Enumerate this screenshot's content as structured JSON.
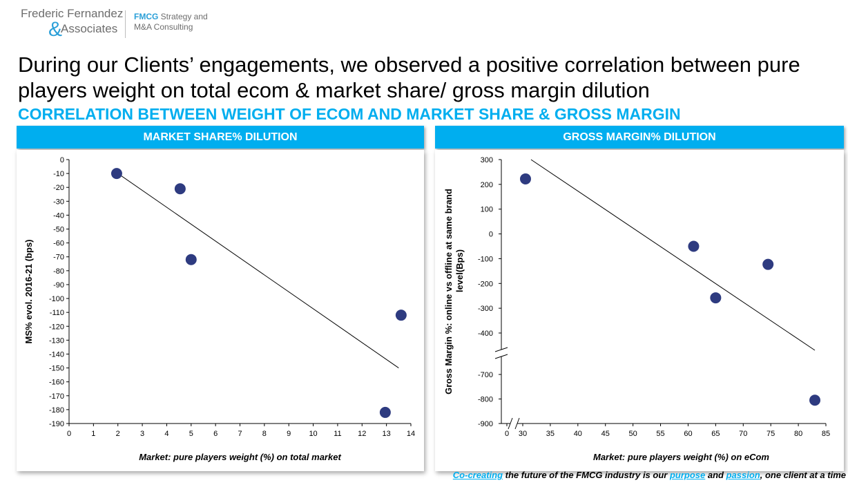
{
  "logo": {
    "name_line1": "Frederic Fernandez",
    "ampersand": "&",
    "name_line2": "Associates",
    "tagline_brand": "FMCG",
    "tagline_rest": " Strategy and",
    "tagline_line2": "M&A Consulting"
  },
  "headline": "During our Clients’ engagements, we observed a positive correlation between pure players weight on total ecom & market share/ gross margin dilution",
  "subheadline": "CORRELATION BETWEEN WEIGHT OF ECOM AND MARKET SHARE & GROSS MARGIN",
  "panels": {
    "left_title": "MARKET SHARE% DILUTION",
    "right_title": "GROSS MARGIN% DILUTION"
  },
  "chart_data": [
    {
      "type": "scatter",
      "title": "MARKET SHARE% DILUTION",
      "xlabel": "Market: pure players weight (%) on total market",
      "ylabel": "MS% evol. 2016-21 (bps)",
      "xlim": [
        0,
        14
      ],
      "ylim": [
        -190,
        0
      ],
      "xticks": [
        0,
        1,
        2,
        3,
        4,
        5,
        6,
        7,
        8,
        9,
        10,
        11,
        12,
        13,
        14
      ],
      "yticks": [
        0,
        -10,
        -20,
        -30,
        -40,
        -50,
        -60,
        -70,
        -80,
        -90,
        -100,
        -110,
        -120,
        -130,
        -140,
        -150,
        -160,
        -170,
        -180,
        -190
      ],
      "points": [
        {
          "x": 1.95,
          "y": -10
        },
        {
          "x": 4.55,
          "y": -21
        },
        {
          "x": 5.0,
          "y": -72
        },
        {
          "x": 13.6,
          "y": -112
        },
        {
          "x": 12.95,
          "y": -182
        }
      ],
      "trendline": {
        "x": [
          2.0,
          13.5
        ],
        "y": [
          -10,
          -150
        ]
      },
      "marker_color": "#2e3b80",
      "grid": false
    },
    {
      "type": "scatter",
      "title": "GROSS MARGIN% DILUTION",
      "xlabel": "Market: pure players weight (%) on eCom",
      "ylabel": "Gross Margin %: online vs offline at same brand level(Bps)",
      "xlim": [
        0,
        85
      ],
      "ylim": [
        -900,
        300
      ],
      "axis_break": {
        "x_between": [
          0,
          30
        ],
        "y_between": [
          -700,
          -400
        ]
      },
      "xticks": [
        0,
        30,
        35,
        40,
        45,
        50,
        55,
        60,
        65,
        70,
        75,
        80,
        85
      ],
      "yticks": [
        300,
        200,
        100,
        0,
        -100,
        -200,
        -300,
        -400,
        -700,
        -800,
        -900
      ],
      "points": [
        {
          "x": 30.5,
          "y": 222
        },
        {
          "x": 61,
          "y": -50
        },
        {
          "x": 74.5,
          "y": -123
        },
        {
          "x": 65,
          "y": -258
        },
        {
          "x": 83,
          "y": -805
        }
      ],
      "trendline": {
        "x": [
          31.5,
          83
        ],
        "y": [
          300,
          "break"
        ]
      },
      "marker_color": "#2e3b80",
      "grid": false
    }
  ],
  "footer": {
    "part1": "Co-creating",
    "part2": " the future of the FMCG industry is our ",
    "part3": "purpose",
    "part4": " and ",
    "part5": "passion",
    "part6": ", one client at a time"
  }
}
